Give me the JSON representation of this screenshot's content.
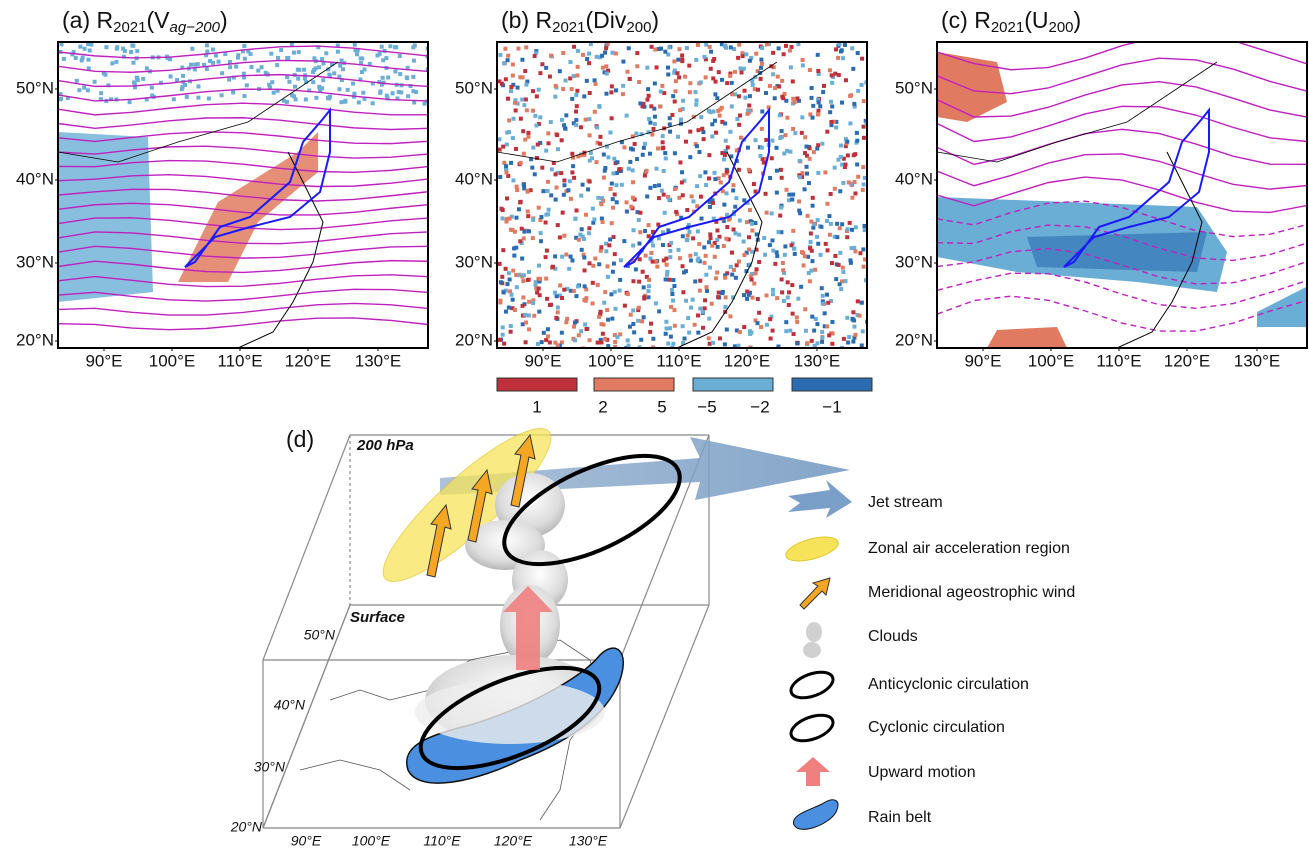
{
  "panels": [
    {
      "label": "(a) R",
      "sub1": "2021",
      "main": "(V",
      "sub2": "ag−200",
      "end": ")",
      "lat_labels": [
        "50°N",
        "40°N",
        "30°N",
        "20°N"
      ],
      "lon_labels": [
        "90°E",
        "100°E",
        "110°E",
        "120°E",
        "130°E"
      ]
    },
    {
      "label": "(b) R",
      "sub1": "2021",
      "main": "(Div",
      "sub2": "200",
      "end": ")",
      "lat_labels": [
        "50°N",
        "40°N",
        "30°N",
        "20°N"
      ],
      "lon_labels": [
        "90°E",
        "100°E",
        "110°E",
        "120°E",
        "130°E"
      ]
    },
    {
      "label": "(c) R",
      "sub1": "2021",
      "main": "(U",
      "sub2": "200",
      "end": ")",
      "lat_labels": [
        "50°N",
        "40°N",
        "30°N",
        "20°N"
      ],
      "lon_labels": [
        "90°E",
        "100°E",
        "110°E",
        "120°E",
        "130°E"
      ]
    }
  ],
  "colorbar": {
    "labels": [
      "1",
      "2",
      "5",
      "−5",
      "−2",
      "−1"
    ]
  },
  "schematic": {
    "label": "(d)",
    "top_level": "200 hPa",
    "bottom_level": "Surface",
    "lat_labels": [
      "50°N",
      "40°N",
      "30°N",
      "20°N"
    ],
    "lon_labels": [
      "90°E",
      "100°E",
      "110°E",
      "120°E",
      "130°E"
    ],
    "legend": [
      "Jet stream",
      "Zonal air acceleration region",
      "Meridional ageostrophic wind",
      "Clouds",
      "Anticyclonic circulation",
      "Cyclonic circulation",
      "Upward motion",
      "Rain belt"
    ]
  }
}
